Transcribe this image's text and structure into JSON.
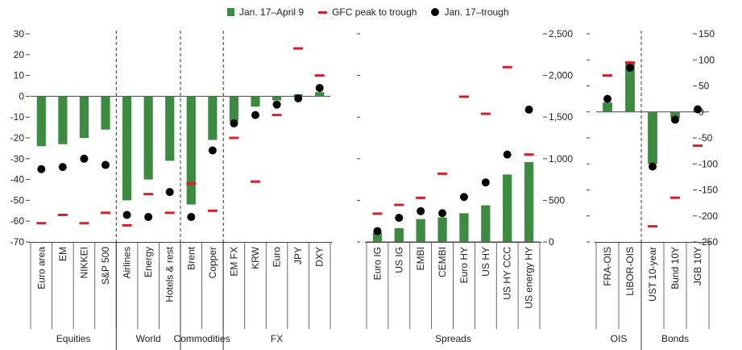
{
  "legend": {
    "bar_label": "Jan. 17–April 9",
    "dash_label": "GFC peak to trough",
    "dot_label": "Jan. 17–trough"
  },
  "colors": {
    "bar": "#3d8b40",
    "dash": "#d4202c",
    "dot": "#000000",
    "axis": "#444444"
  },
  "chart_data": [
    {
      "type": "bar",
      "panel": "left",
      "ylim": [
        -70,
        30
      ],
      "yticks": [
        30,
        20,
        10,
        0,
        -10,
        -20,
        -30,
        -40,
        -50,
        -60,
        -70
      ],
      "ytick_labels": [
        "30",
        "20",
        "10",
        "0",
        "-10",
        "-20",
        "-30",
        "-40",
        "-50",
        "-60",
        "-70"
      ],
      "groups": [
        {
          "label": "Equities",
          "categories": [
            "Euro area",
            "EM",
            "NIKKEI",
            "S&P 500"
          ]
        },
        {
          "label": "World",
          "categories": [
            "Airlines",
            "Energy",
            "Hotels & rest"
          ]
        },
        {
          "label": "Commodities",
          "categories": [
            "Brent",
            "Copper"
          ]
        },
        {
          "label": "FX",
          "categories": [
            "EM FX",
            "KRW",
            "Euro",
            "JPY",
            "DXY"
          ]
        }
      ],
      "categories": [
        "Euro area",
        "EM",
        "NIKKEI",
        "S&P 500",
        "Airlines",
        "Energy",
        "Hotels & rest",
        "Brent",
        "Copper",
        "EM FX",
        "KRW",
        "Euro",
        "JPY",
        "DXY"
      ],
      "series": [
        {
          "name": "Jan. 17–April 9",
          "kind": "bar",
          "values": [
            -24,
            -23,
            -20,
            -16,
            -50,
            -40,
            -31,
            -52,
            -21,
            -12,
            -5,
            -2,
            1,
            2
          ]
        },
        {
          "name": "GFC peak to trough",
          "kind": "dash",
          "values": [
            -61,
            -57,
            -61,
            -56,
            -62,
            -47,
            -56,
            -42,
            -55,
            -20,
            -41,
            -9,
            23,
            10
          ]
        },
        {
          "name": "Jan. 17–trough",
          "kind": "dot",
          "values": [
            -35,
            -34,
            -30,
            -33,
            -57,
            -58,
            -46,
            -58,
            -26,
            -13,
            -9,
            -4,
            -1,
            4
          ]
        }
      ]
    },
    {
      "type": "bar",
      "panel": "middle",
      "ylim": [
        0,
        2500
      ],
      "yticks": [
        2500,
        2000,
        1500,
        1000,
        500,
        0
      ],
      "ytick_labels": [
        "2,500",
        "2,000",
        "1,500",
        "1,000",
        "500",
        "0"
      ],
      "groups": [
        {
          "label": "Spreads",
          "categories": [
            "Euro IG",
            "US IG",
            "EMBI",
            "CEMBI",
            "Euro HY",
            "US HY",
            "US HY CCC",
            "US energy HY"
          ]
        }
      ],
      "categories": [
        "Euro IG",
        "US IG",
        "EMBI",
        "CEMBI",
        "Euro HY",
        "US HY",
        "US HY CCC",
        "US energy HY"
      ],
      "series": [
        {
          "name": "Jan. 17–April 9",
          "kind": "bar",
          "values": [
            110,
            165,
            275,
            295,
            345,
            440,
            810,
            960
          ]
        },
        {
          "name": "GFC peak to trough",
          "kind": "dash",
          "values": [
            340,
            445,
            530,
            820,
            1745,
            1540,
            2100,
            1050
          ]
        },
        {
          "name": "Jan. 17–trough",
          "kind": "dot",
          "values": [
            130,
            290,
            370,
            345,
            540,
            715,
            1050,
            1590
          ]
        }
      ]
    },
    {
      "type": "bar",
      "panel": "right",
      "ylim": [
        -250,
        150
      ],
      "yticks": [
        150,
        100,
        50,
        0,
        -50,
        -100,
        -150,
        -200,
        -250
      ],
      "ytick_labels": [
        "150",
        "100",
        "50",
        "0",
        "-50",
        "-100",
        "-150",
        "-200",
        "-250"
      ],
      "groups": [
        {
          "label": "OIS",
          "categories": [
            "FRA-OIS",
            "LIBOR-OIS"
          ]
        },
        {
          "label": "Bonds",
          "categories": [
            "UST 10-year",
            "Bund 10Y",
            "JGB 10Y"
          ]
        }
      ],
      "categories": [
        "FRA-OIS",
        "LIBOR-OIS",
        "UST 10-year",
        "Bund 10Y",
        "JGB 10Y"
      ],
      "series": [
        {
          "name": "Jan. 17–April 9",
          "kind": "bar",
          "values": [
            18,
            95,
            -100,
            -12,
            2
          ]
        },
        {
          "name": "GFC peak to trough",
          "kind": "dash",
          "values": [
            70,
            95,
            -220,
            -165,
            -65
          ]
        },
        {
          "name": "Jan. 17–trough",
          "kind": "dot",
          "values": [
            25,
            85,
            -105,
            -15,
            5
          ]
        }
      ]
    }
  ]
}
